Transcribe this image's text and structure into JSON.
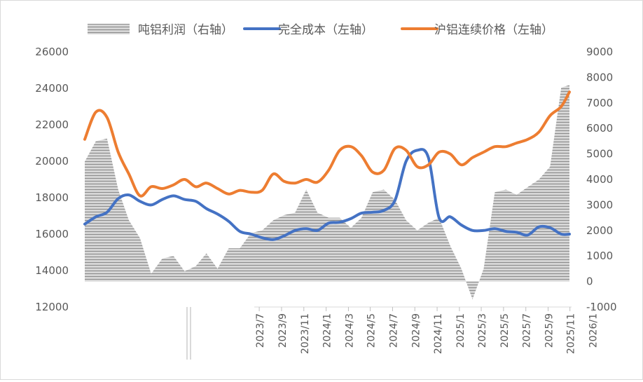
{
  "chart_data": {
    "type": "line",
    "title": "",
    "legend": {
      "position": "top",
      "items": [
        {
          "label": "吨铝利润（右轴）",
          "kind": "area",
          "color": "#a6a6a6"
        },
        {
          "label": "完全成本（左轴）",
          "kind": "line",
          "color": "#4472c4"
        },
        {
          "label": "沪铝连续价格（左轴）",
          "kind": "line",
          "color": "#ed7d31"
        }
      ]
    },
    "left_axis": {
      "min": 12000,
      "max": 26000,
      "ticks": [
        12000,
        14000,
        16000,
        18000,
        20000,
        22000,
        24000,
        26000
      ]
    },
    "right_axis": {
      "min": -1000,
      "max": 9000,
      "ticks": [
        -1000,
        0,
        1000,
        2000,
        3000,
        4000,
        5000,
        6000,
        7000,
        8000,
        9000
      ]
    },
    "x_axis": {
      "tick_labels": [
        "2023/7",
        "2023/9",
        "2023/11",
        "2024/1",
        "2024/3",
        "2024/5",
        "2024/7",
        "2024/9",
        "2024/11",
        "2025/1",
        "2025/3",
        "2025/5",
        "2025/7",
        "2025/9",
        "2025/11",
        "2026/1"
      ],
      "tick_positions": [
        0.36,
        0.406,
        0.452,
        0.498,
        0.544,
        0.589,
        0.635,
        0.681,
        0.727,
        0.773,
        0.818,
        0.864,
        0.91,
        0.956,
        1.001,
        1.047
      ],
      "range": [
        -0.04,
        1.012
      ]
    },
    "series": [
      {
        "name": "吨铝利润（右轴）",
        "axis": "right",
        "type": "area",
        "color": "#a6a6a6",
        "x": [
          0,
          0.023,
          0.046,
          0.069,
          0.091,
          0.114,
          0.137,
          0.16,
          0.183,
          0.206,
          0.229,
          0.251,
          0.274,
          0.297,
          0.32,
          0.343,
          0.366,
          0.389,
          0.411,
          0.434,
          0.457,
          0.48,
          0.503,
          0.526,
          0.549,
          0.571,
          0.594,
          0.617,
          0.64,
          0.663,
          0.686,
          0.709,
          0.731,
          0.754,
          0.777,
          0.8,
          0.823,
          0.846,
          0.869,
          0.891,
          0.914,
          0.937,
          0.96,
          0.983,
          1.0
        ],
        "values": [
          4700,
          5500,
          5600,
          3600,
          2400,
          1700,
          300,
          900,
          1000,
          400,
          600,
          1100,
          500,
          1300,
          1300,
          1900,
          2000,
          2400,
          2600,
          2700,
          3600,
          2700,
          2500,
          2500,
          2100,
          2500,
          3500,
          3600,
          3200,
          2400,
          2000,
          2300,
          2500,
          1400,
          500,
          -700,
          500,
          3500,
          3600,
          3400,
          3700,
          4000,
          4500,
          7600,
          7700
        ]
      },
      {
        "name": "完全成本（左轴）",
        "axis": "left",
        "type": "line",
        "color": "#4472c4",
        "x": [
          0,
          0.023,
          0.046,
          0.069,
          0.091,
          0.114,
          0.137,
          0.16,
          0.183,
          0.206,
          0.229,
          0.251,
          0.274,
          0.297,
          0.32,
          0.343,
          0.366,
          0.389,
          0.411,
          0.434,
          0.457,
          0.48,
          0.503,
          0.526,
          0.549,
          0.571,
          0.594,
          0.617,
          0.64,
          0.663,
          0.686,
          0.709,
          0.731,
          0.754,
          0.777,
          0.8,
          0.823,
          0.846,
          0.869,
          0.891,
          0.914,
          0.937,
          0.96,
          0.983,
          1.0
        ],
        "values": [
          16550,
          16950,
          17200,
          17950,
          18150,
          17800,
          17600,
          17900,
          18100,
          17900,
          17800,
          17400,
          17100,
          16700,
          16150,
          16000,
          15800,
          15700,
          15900,
          16200,
          16300,
          16200,
          16600,
          16650,
          16850,
          17150,
          17200,
          17300,
          17850,
          20000,
          20600,
          20200,
          16900,
          16950,
          16500,
          16200,
          16200,
          16300,
          16150,
          16100,
          15950,
          16400,
          16350,
          16000,
          16000
        ]
      },
      {
        "name": "沪铝连续价格（左轴）",
        "axis": "left",
        "type": "line",
        "color": "#ed7d31",
        "x": [
          0,
          0.023,
          0.046,
          0.069,
          0.091,
          0.114,
          0.137,
          0.16,
          0.183,
          0.206,
          0.229,
          0.251,
          0.274,
          0.297,
          0.32,
          0.343,
          0.366,
          0.389,
          0.411,
          0.434,
          0.457,
          0.48,
          0.503,
          0.526,
          0.549,
          0.571,
          0.594,
          0.617,
          0.64,
          0.663,
          0.686,
          0.709,
          0.731,
          0.754,
          0.777,
          0.8,
          0.823,
          0.846,
          0.869,
          0.891,
          0.914,
          0.937,
          0.96,
          0.983,
          1.0
        ],
        "values": [
          21200,
          22700,
          22400,
          20500,
          19300,
          18100,
          18600,
          18500,
          18700,
          19000,
          18600,
          18800,
          18500,
          18200,
          18400,
          18300,
          18400,
          19300,
          18900,
          18800,
          19000,
          18850,
          19500,
          20600,
          20800,
          20300,
          19400,
          19500,
          20700,
          20600,
          19700,
          19800,
          20500,
          20400,
          19800,
          20200,
          20500,
          20800,
          20800,
          21000,
          21200,
          21600,
          22500,
          23000,
          23800
        ]
      }
    ]
  }
}
